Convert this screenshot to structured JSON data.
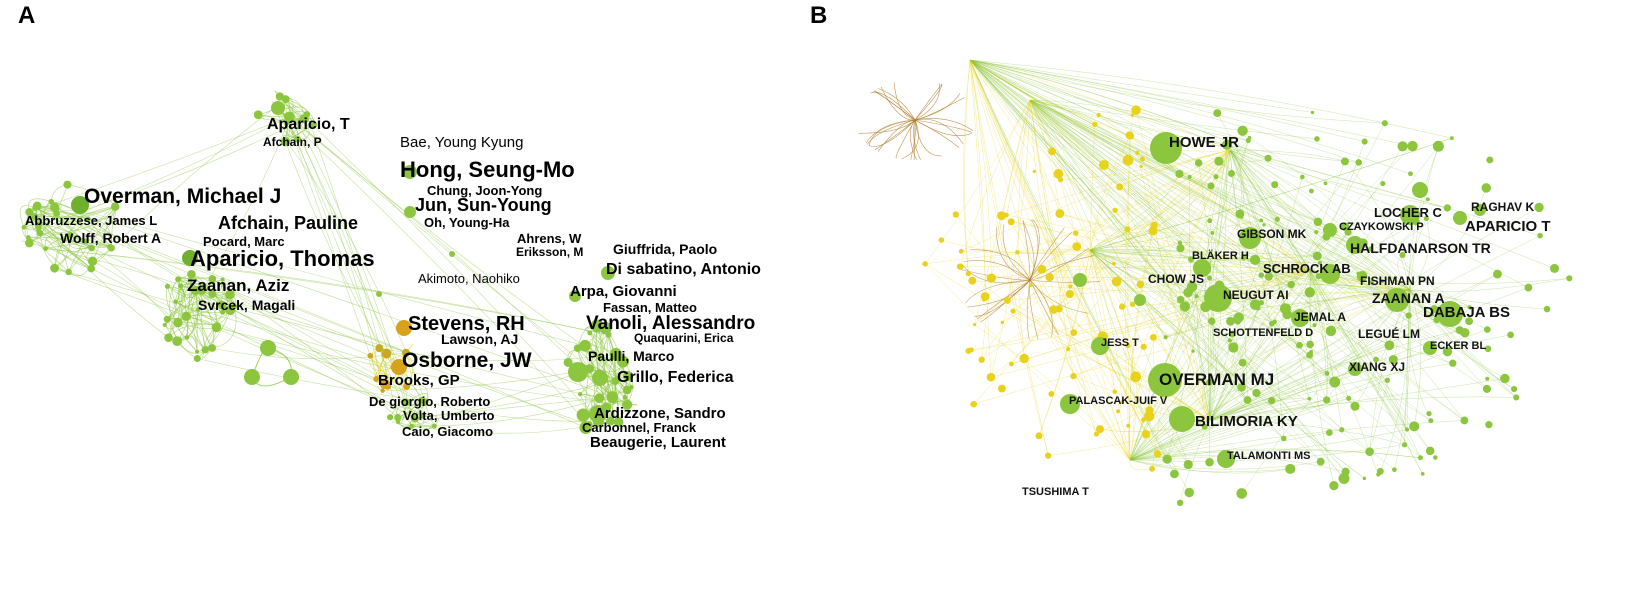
{
  "panels": {
    "a": {
      "letter": "A",
      "labels": [
        "Aparicio, T",
        "Afchain, P",
        "Overman, Michael J",
        "Abbruzzese, James L",
        "Wolff, Robert A",
        "Afchain, Pauline",
        "Pocard, Marc",
        "Aparicio, Thomas",
        "Zaanan, Aziz",
        "Svrcek, Magali",
        "Bae, Young Kyung",
        "Hong, Seung-Mo",
        "Chung, Joon-Yong",
        "Jun, Sun-Young",
        "Oh, Young-Ha",
        "Ahrens, W",
        "Eriksson, M",
        "Giuffrida, Paolo",
        "Di sabatino, Antonio",
        "Akimoto, Naohiko",
        "Arpa, Giovanni",
        "Fassan, Matteo",
        "Stevens, RH",
        "Vanoli, Alessandro",
        "Lawson, AJ",
        "Quaquarini, Erica",
        "Osborne, JW",
        "Paulli, Marco",
        "Brooks, GP",
        "Grillo, Federica",
        "De giorgio, Roberto",
        "Volta, Umberto",
        "Ardizzone, Sandro",
        "Caio, Giacomo",
        "Carbonnel, Franck",
        "Beaugerie, Laurent"
      ]
    },
    "b": {
      "letter": "B",
      "labels": [
        "HOWE JR",
        "RAGHAV K",
        "LOCHER C",
        "APARICIO T",
        "CZAYKOWSKI P",
        "GIBSON MK",
        "HALFDANARSON TR",
        "BLÄKER H",
        "SCHROCK AB",
        "CHOW JS",
        "FISHMAN PN",
        "NEUGUT AI",
        "ZAANAN A",
        "DABAJA BS",
        "JEMAL A",
        "SCHOTTENFELD D",
        "LEGUÉ LM",
        "JESS T",
        "ECKER BL",
        "OVERMAN MJ",
        "XIANG XJ",
        "PALASCAK-JUIF V",
        "BILIMORIA KY",
        "TALAMONTI MS",
        "TSUSHIMA T"
      ]
    }
  },
  "colors": {
    "green": "#8cc63f",
    "green_dark": "#6fb02e",
    "yellow": "#e8d21c",
    "orange": "#d9a21b",
    "brown": "#b07a2a"
  }
}
